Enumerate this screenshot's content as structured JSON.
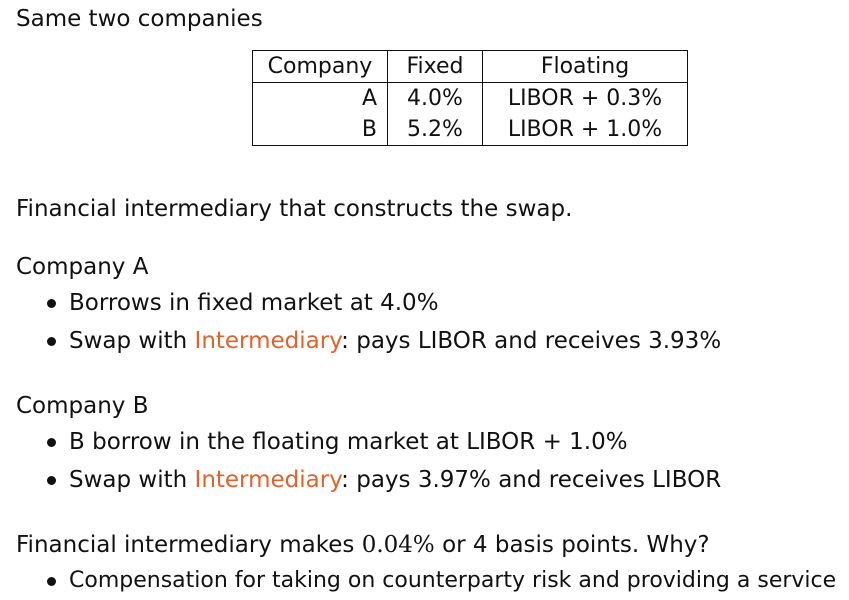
{
  "title": "Same two companies",
  "table": {
    "headers": [
      "Company",
      "Fixed",
      "Floating"
    ],
    "rows": [
      [
        "A",
        "4.0%",
        "LIBOR + 0.3%"
      ],
      [
        "B",
        "5.2%",
        "LIBOR + 1.0%"
      ]
    ]
  },
  "intro": "Financial intermediary that constructs the swap.",
  "company_a": {
    "heading": "Company A",
    "bullet1": "Borrows in fixed market at 4.0%",
    "bullet2_prefix": "Swap with ",
    "bullet2_highlight": "Intermediary",
    "bullet2_suffix": ": pays LIBOR and receives 3.93%"
  },
  "company_b": {
    "heading": "Company B",
    "bullet1": "B borrow in the floating market at LIBOR + 1.0%",
    "bullet2_prefix": "Swap with ",
    "bullet2_highlight": "Intermediary",
    "bullet2_suffix": ": pays 3.97% and receives LIBOR"
  },
  "conclusion": {
    "prefix": "Financial intermediary makes ",
    "math": "0.04%",
    "suffix": " or 4 basis points. Why?",
    "bullet": "Compensation for taking on counterparty risk and providing a service"
  },
  "colors": {
    "highlight": "#e0632e",
    "text": "#111111",
    "background": "#ffffff"
  }
}
